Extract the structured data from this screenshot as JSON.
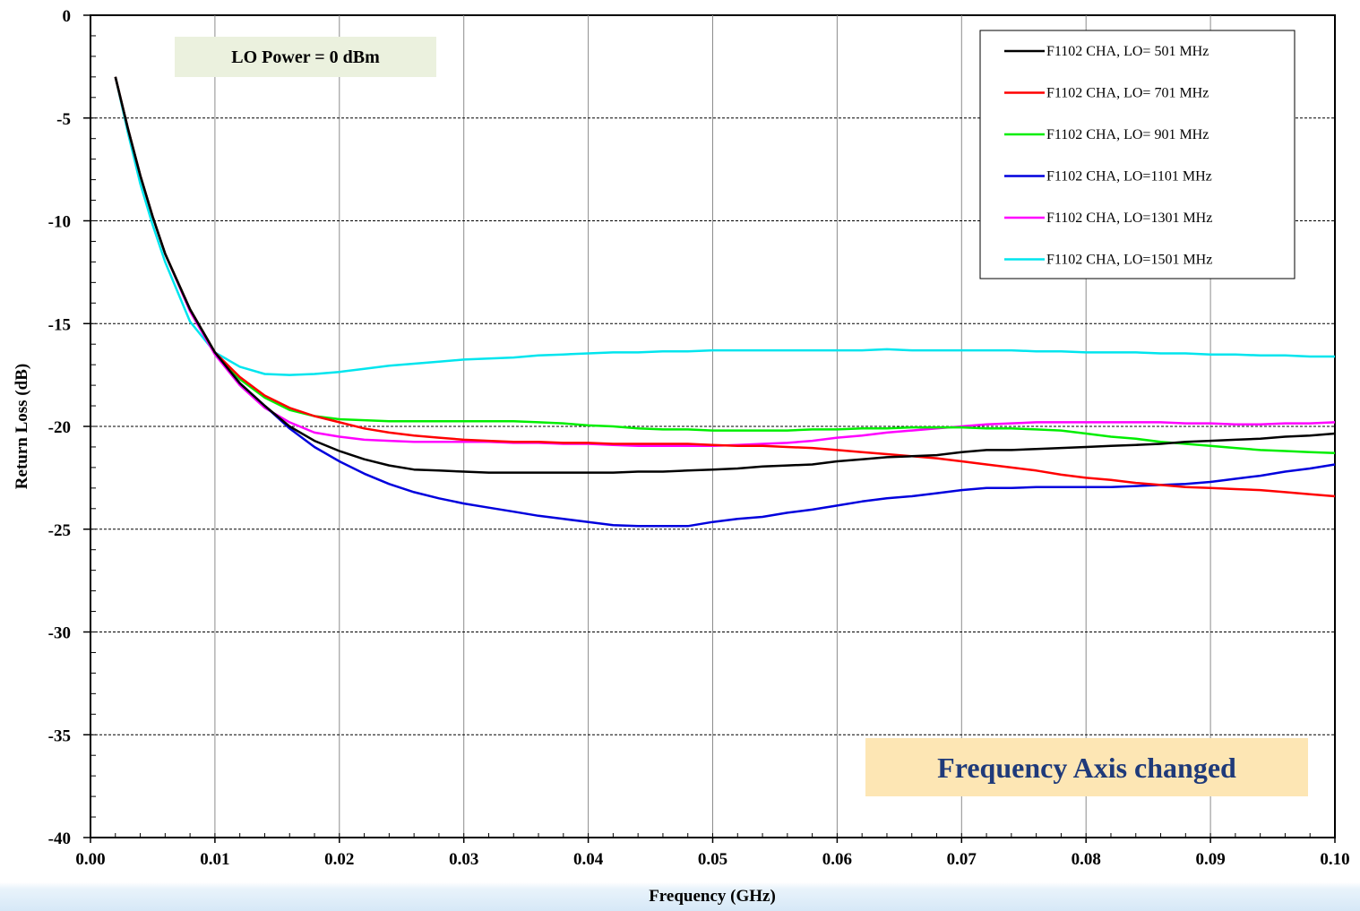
{
  "chart_data": {
    "type": "line",
    "title": "",
    "xlabel": "Frequency (GHz)",
    "ylabel": "Return Loss (dB)",
    "xlim": [
      0,
      0.1
    ],
    "ylim": [
      -40,
      0
    ],
    "x_ticks": [
      "0.00",
      "0.01",
      "0.02",
      "0.03",
      "0.04",
      "0.05",
      "0.06",
      "0.07",
      "0.08",
      "0.09",
      "0.10"
    ],
    "y_ticks": [
      "0",
      "-5",
      "-10",
      "-15",
      "-20",
      "-25",
      "-30",
      "-35",
      "-40"
    ],
    "grid": true,
    "legend_position": "top-right",
    "annotations": {
      "lo_power": "LO Power = 0 dBm",
      "axis_note": "Frequency Axis changed"
    },
    "x": [
      0.002,
      0.003,
      0.004,
      0.005,
      0.006,
      0.008,
      0.01,
      0.012,
      0.014,
      0.016,
      0.018,
      0.02,
      0.022,
      0.024,
      0.026,
      0.028,
      0.03,
      0.032,
      0.034,
      0.036,
      0.038,
      0.04,
      0.042,
      0.044,
      0.046,
      0.048,
      0.05,
      0.052,
      0.054,
      0.056,
      0.058,
      0.06,
      0.062,
      0.064,
      0.066,
      0.068,
      0.07,
      0.072,
      0.074,
      0.076,
      0.078,
      0.08,
      0.082,
      0.084,
      0.086,
      0.088,
      0.09,
      0.092,
      0.094,
      0.096,
      0.098,
      0.1
    ],
    "series": [
      {
        "name": "F1102 CHA, LO= 501 MHz",
        "color": "#000000",
        "values": [
          -3.0,
          -5.5,
          -7.8,
          -9.8,
          -11.6,
          -14.3,
          -16.4,
          -17.9,
          -19.0,
          -20.0,
          -20.7,
          -21.2,
          -21.6,
          -21.9,
          -22.1,
          -22.15,
          -22.2,
          -22.25,
          -22.25,
          -22.25,
          -22.25,
          -22.25,
          -22.25,
          -22.2,
          -22.2,
          -22.15,
          -22.1,
          -22.05,
          -21.95,
          -21.9,
          -21.85,
          -21.7,
          -21.6,
          -21.5,
          -21.45,
          -21.4,
          -21.25,
          -21.15,
          -21.15,
          -21.1,
          -21.05,
          -21.0,
          -20.95,
          -20.9,
          -20.85,
          -20.75,
          -20.7,
          -20.65,
          -20.6,
          -20.5,
          -20.45,
          -20.35
        ]
      },
      {
        "name": "F1102 CHA, LO= 701 MHz",
        "color": "#ff0000",
        "values": [
          -3.0,
          -5.5,
          -7.8,
          -9.8,
          -11.6,
          -14.3,
          -16.4,
          -17.6,
          -18.5,
          -19.1,
          -19.5,
          -19.8,
          -20.1,
          -20.3,
          -20.45,
          -20.55,
          -20.65,
          -20.7,
          -20.75,
          -20.75,
          -20.8,
          -20.8,
          -20.85,
          -20.85,
          -20.85,
          -20.85,
          -20.9,
          -20.95,
          -20.95,
          -21.0,
          -21.05,
          -21.15,
          -21.25,
          -21.35,
          -21.45,
          -21.55,
          -21.7,
          -21.85,
          -22.0,
          -22.15,
          -22.35,
          -22.5,
          -22.6,
          -22.75,
          -22.85,
          -22.95,
          -23.0,
          -23.05,
          -23.1,
          -23.2,
          -23.3,
          -23.4
        ]
      },
      {
        "name": "F1102 CHA, LO= 901 MHz",
        "color": "#00ee00",
        "values": [
          -3.0,
          -5.5,
          -7.8,
          -9.8,
          -11.6,
          -14.3,
          -16.4,
          -17.7,
          -18.6,
          -19.2,
          -19.5,
          -19.65,
          -19.7,
          -19.75,
          -19.75,
          -19.75,
          -19.75,
          -19.75,
          -19.75,
          -19.8,
          -19.85,
          -19.95,
          -20.0,
          -20.1,
          -20.15,
          -20.15,
          -20.2,
          -20.2,
          -20.2,
          -20.2,
          -20.15,
          -20.15,
          -20.1,
          -20.1,
          -20.05,
          -20.05,
          -20.05,
          -20.1,
          -20.1,
          -20.15,
          -20.2,
          -20.35,
          -20.5,
          -20.6,
          -20.75,
          -20.85,
          -20.95,
          -21.05,
          -21.15,
          -21.2,
          -21.25,
          -21.3
        ]
      },
      {
        "name": "F1102 CHA, LO=1101 MHz",
        "color": "#0000dd",
        "values": [
          -3.0,
          -5.5,
          -7.8,
          -9.8,
          -11.6,
          -14.3,
          -16.4,
          -17.9,
          -19.0,
          -20.1,
          -21.0,
          -21.7,
          -22.3,
          -22.8,
          -23.2,
          -23.5,
          -23.75,
          -23.95,
          -24.15,
          -24.35,
          -24.5,
          -24.65,
          -24.8,
          -24.85,
          -24.85,
          -24.85,
          -24.65,
          -24.5,
          -24.4,
          -24.2,
          -24.05,
          -23.85,
          -23.65,
          -23.5,
          -23.4,
          -23.25,
          -23.1,
          -23.0,
          -23.0,
          -22.95,
          -22.95,
          -22.95,
          -22.95,
          -22.9,
          -22.85,
          -22.8,
          -22.7,
          -22.55,
          -22.4,
          -22.2,
          -22.05,
          -21.85
        ]
      },
      {
        "name": "F1102 CHA, LO=1301 MHz",
        "color": "#ff00ff",
        "values": [
          -3.0,
          -5.5,
          -7.8,
          -9.8,
          -11.6,
          -14.4,
          -16.5,
          -18.0,
          -19.1,
          -19.8,
          -20.3,
          -20.5,
          -20.65,
          -20.7,
          -20.75,
          -20.75,
          -20.75,
          -20.75,
          -20.8,
          -20.8,
          -20.85,
          -20.85,
          -20.9,
          -20.95,
          -20.95,
          -20.95,
          -20.95,
          -20.9,
          -20.85,
          -20.8,
          -20.7,
          -20.55,
          -20.45,
          -20.3,
          -20.2,
          -20.1,
          -20.0,
          -19.9,
          -19.85,
          -19.8,
          -19.8,
          -19.8,
          -19.8,
          -19.8,
          -19.8,
          -19.85,
          -19.85,
          -19.9,
          -19.9,
          -19.85,
          -19.85,
          -19.8
        ]
      },
      {
        "name": "F1102 CHA, LO=1501 MHz",
        "color": "#00e5ee",
        "values": [
          -3.0,
          -5.7,
          -8.2,
          -10.2,
          -12.0,
          -14.9,
          -16.4,
          -17.1,
          -17.45,
          -17.5,
          -17.45,
          -17.35,
          -17.2,
          -17.05,
          -16.95,
          -16.85,
          -16.75,
          -16.7,
          -16.65,
          -16.55,
          -16.5,
          -16.45,
          -16.4,
          -16.4,
          -16.35,
          -16.35,
          -16.3,
          -16.3,
          -16.3,
          -16.3,
          -16.3,
          -16.3,
          -16.3,
          -16.25,
          -16.3,
          -16.3,
          -16.3,
          -16.3,
          -16.3,
          -16.35,
          -16.35,
          -16.4,
          -16.4,
          -16.4,
          -16.45,
          -16.45,
          -16.5,
          -16.5,
          -16.55,
          -16.55,
          -16.6,
          -16.6
        ]
      }
    ]
  }
}
